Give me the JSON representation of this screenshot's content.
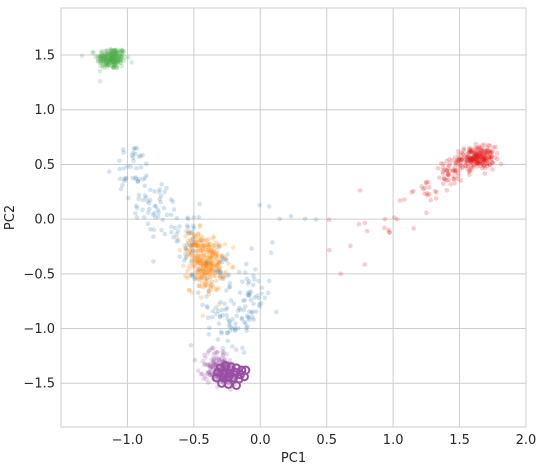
{
  "chart_data": {
    "type": "scatter",
    "xlabel": "PC1",
    "ylabel": "PC2",
    "xlim": [
      -1.5,
      2.0
    ],
    "ylim": [
      -1.9,
      1.93
    ],
    "grid": true,
    "x_ticks": [
      {
        "value": -1.0,
        "label": "−1.0"
      },
      {
        "value": -0.5,
        "label": "−0.5"
      },
      {
        "value": 0.0,
        "label": "0.0"
      },
      {
        "value": 0.5,
        "label": "0.5"
      },
      {
        "value": 1.0,
        "label": "1.0"
      },
      {
        "value": 1.5,
        "label": "1.5"
      },
      {
        "value": 2.0,
        "label": "2.0"
      }
    ],
    "y_ticks": [
      {
        "value": -1.5,
        "label": "−1.5"
      },
      {
        "value": -1.0,
        "label": "−1.0"
      },
      {
        "value": -0.5,
        "label": "−0.5"
      },
      {
        "value": 0.0,
        "label": "0.0"
      },
      {
        "value": 0.5,
        "label": "0.5"
      },
      {
        "value": 1.0,
        "label": "1.0"
      },
      {
        "value": 1.5,
        "label": "1.5"
      }
    ],
    "series": [
      {
        "color": "#4daf4a",
        "clusters": [
          {
            "center": [
              -1.12,
              1.47
            ],
            "spread": [
              0.055,
              0.05
            ],
            "n": 220
          }
        ]
      },
      {
        "color": "#e41a1c",
        "clusters": [
          {
            "center": [
              1.63,
              0.56
            ],
            "spread": [
              0.065,
              0.05
            ],
            "n": 230
          },
          {
            "center": [
              1.45,
              0.42
            ],
            "spread": [
              0.07,
              0.06
            ],
            "n": 50
          },
          {
            "center": [
              1.25,
              0.25
            ],
            "spread": [
              0.08,
              0.07
            ],
            "n": 20
          },
          {
            "center": [
              0.95,
              0.05
            ],
            "spread": [
              0.12,
              0.12
            ],
            "n": 12
          },
          {
            "center": [
              0.7,
              -0.25
            ],
            "spread": [
              0.1,
              0.15
            ],
            "n": 6
          }
        ]
      },
      {
        "color": "#ff7f00",
        "clusters": [
          {
            "center": [
              -0.4,
              -0.42
            ],
            "spread": [
              0.065,
              0.12
            ],
            "n": 240
          },
          {
            "center": [
              -0.5,
              -0.25
            ],
            "spread": [
              0.05,
              0.08
            ],
            "n": 60
          }
        ]
      },
      {
        "color": "#984ea3",
        "clusters": [
          {
            "center": [
              -0.28,
              -1.4
            ],
            "spread": [
              0.06,
              0.06
            ],
            "n": 200
          },
          {
            "center": [
              -0.32,
              -1.28
            ],
            "spread": [
              0.07,
              0.05
            ],
            "n": 40
          }
        ]
      },
      {
        "color": "#377eb8",
        "clusters": [
          {
            "center": [
              -0.95,
              0.45
            ],
            "spread": [
              0.07,
              0.12
            ],
            "n": 40
          },
          {
            "center": [
              -0.8,
              0.15
            ],
            "spread": [
              0.08,
              0.1
            ],
            "n": 40
          },
          {
            "center": [
              -0.6,
              -0.1
            ],
            "spread": [
              0.1,
              0.12
            ],
            "n": 40
          },
          {
            "center": [
              -0.3,
              -0.5
            ],
            "spread": [
              0.12,
              0.15
            ],
            "n": 40
          },
          {
            "center": [
              -0.2,
              -0.9
            ],
            "spread": [
              0.1,
              0.12
            ],
            "n": 70
          },
          {
            "center": [
              -0.05,
              -0.7
            ],
            "spread": [
              0.06,
              0.1
            ],
            "n": 30
          },
          {
            "center": [
              0.15,
              0.0
            ],
            "spread": [
              0.12,
              0.2
            ],
            "n": 8
          }
        ]
      }
    ],
    "highlighted_points": {
      "color": "#984ea3",
      "points": [
        [
          -0.3,
          -1.36
        ],
        [
          -0.26,
          -1.34
        ],
        [
          -0.22,
          -1.35
        ],
        [
          -0.18,
          -1.36
        ],
        [
          -0.14,
          -1.38
        ],
        [
          -0.11,
          -1.38
        ],
        [
          -0.32,
          -1.4
        ],
        [
          -0.27,
          -1.41
        ],
        [
          -0.23,
          -1.41
        ],
        [
          -0.19,
          -1.4
        ],
        [
          -0.15,
          -1.42
        ],
        [
          -0.33,
          -1.45
        ],
        [
          -0.28,
          -1.45
        ],
        [
          -0.24,
          -1.44
        ],
        [
          -0.2,
          -1.45
        ],
        [
          -0.16,
          -1.46
        ],
        [
          -0.12,
          -1.44
        ],
        [
          -0.29,
          -1.5
        ],
        [
          -0.24,
          -1.51
        ],
        [
          -0.18,
          -1.52
        ]
      ]
    }
  }
}
